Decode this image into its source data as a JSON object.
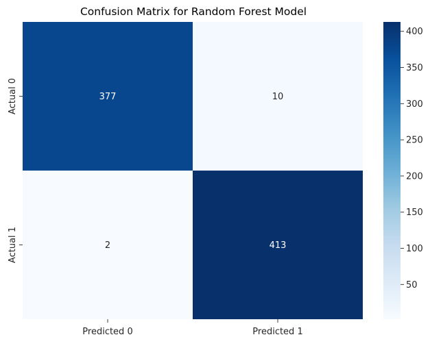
{
  "chart_data": {
    "type": "heatmap",
    "title": "Confusion Matrix for Random Forest Model",
    "x_categories": [
      "Predicted 0",
      "Predicted 1"
    ],
    "y_categories": [
      "Actual 0",
      "Actual 1"
    ],
    "values": [
      [
        377,
        10
      ],
      [
        2,
        413
      ]
    ],
    "colormap": "Blues",
    "color_range": [
      2,
      413
    ],
    "colorbar_ticks": [
      50,
      100,
      150,
      200,
      250,
      300,
      350,
      400
    ],
    "colors": {
      "cell_low": "#f7fbff",
      "cell_high": "#08306b",
      "text_on_dark": "#ffffff",
      "text_on_light": "#262626"
    }
  }
}
